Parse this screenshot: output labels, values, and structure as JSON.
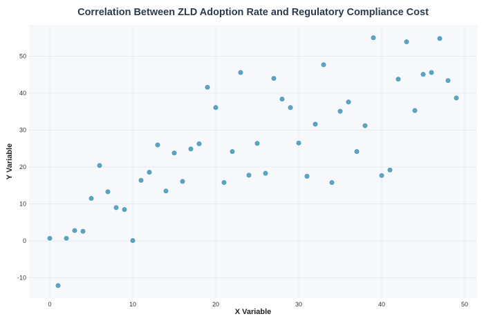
{
  "chart_data": {
    "type": "scatter",
    "title": "Correlation Between ZLD Adoption Rate and Regulatory Compliance Cost",
    "xlabel": "X Variable",
    "ylabel": "Y Variable",
    "xlim": [
      -2.5,
      51.5
    ],
    "ylim": [
      -15.5,
      58.5
    ],
    "xticks": [
      0,
      10,
      20,
      30,
      40,
      50
    ],
    "yticks": [
      -10,
      0,
      10,
      20,
      30,
      40,
      50
    ],
    "grid": true,
    "colors": {
      "point": "#5ba3c0",
      "point_edge": "#ffffff",
      "plot_bg": "#f7f8fb"
    },
    "points": [
      {
        "x": 0,
        "y": 0.7
      },
      {
        "x": 1,
        "y": -12.1
      },
      {
        "x": 2,
        "y": 0.7
      },
      {
        "x": 3,
        "y": 2.8
      },
      {
        "x": 4,
        "y": 2.6
      },
      {
        "x": 5,
        "y": 11.5
      },
      {
        "x": 6,
        "y": 20.4
      },
      {
        "x": 7,
        "y": 13.3
      },
      {
        "x": 8,
        "y": 9.0
      },
      {
        "x": 9,
        "y": 8.5
      },
      {
        "x": 10,
        "y": 0.1
      },
      {
        "x": 11,
        "y": 16.4
      },
      {
        "x": 12,
        "y": 18.6
      },
      {
        "x": 13,
        "y": 26.0
      },
      {
        "x": 14,
        "y": 13.5
      },
      {
        "x": 15,
        "y": 23.8
      },
      {
        "x": 16,
        "y": 16.1
      },
      {
        "x": 17,
        "y": 24.9
      },
      {
        "x": 18,
        "y": 26.3
      },
      {
        "x": 19,
        "y": 41.6
      },
      {
        "x": 20,
        "y": 36.1
      },
      {
        "x": 21,
        "y": 15.8
      },
      {
        "x": 22,
        "y": 24.2
      },
      {
        "x": 23,
        "y": 45.6
      },
      {
        "x": 24,
        "y": 17.8
      },
      {
        "x": 25,
        "y": 26.4
      },
      {
        "x": 26,
        "y": 18.3
      },
      {
        "x": 27,
        "y": 44.0
      },
      {
        "x": 28,
        "y": 38.4
      },
      {
        "x": 29,
        "y": 36.1
      },
      {
        "x": 30,
        "y": 26.5
      },
      {
        "x": 31,
        "y": 17.5
      },
      {
        "x": 32,
        "y": 31.6
      },
      {
        "x": 33,
        "y": 47.7
      },
      {
        "x": 34,
        "y": 15.8
      },
      {
        "x": 35,
        "y": 35.1
      },
      {
        "x": 36,
        "y": 37.6
      },
      {
        "x": 37,
        "y": 24.2
      },
      {
        "x": 38,
        "y": 31.2
      },
      {
        "x": 39,
        "y": 55.0
      },
      {
        "x": 40,
        "y": 17.7
      },
      {
        "x": 41,
        "y": 19.2
      },
      {
        "x": 42,
        "y": 43.8
      },
      {
        "x": 43,
        "y": 53.9
      },
      {
        "x": 44,
        "y": 35.3
      },
      {
        "x": 45,
        "y": 45.1
      },
      {
        "x": 46,
        "y": 45.6
      },
      {
        "x": 47,
        "y": 54.8
      },
      {
        "x": 48,
        "y": 43.4
      },
      {
        "x": 49,
        "y": 38.7
      }
    ]
  }
}
